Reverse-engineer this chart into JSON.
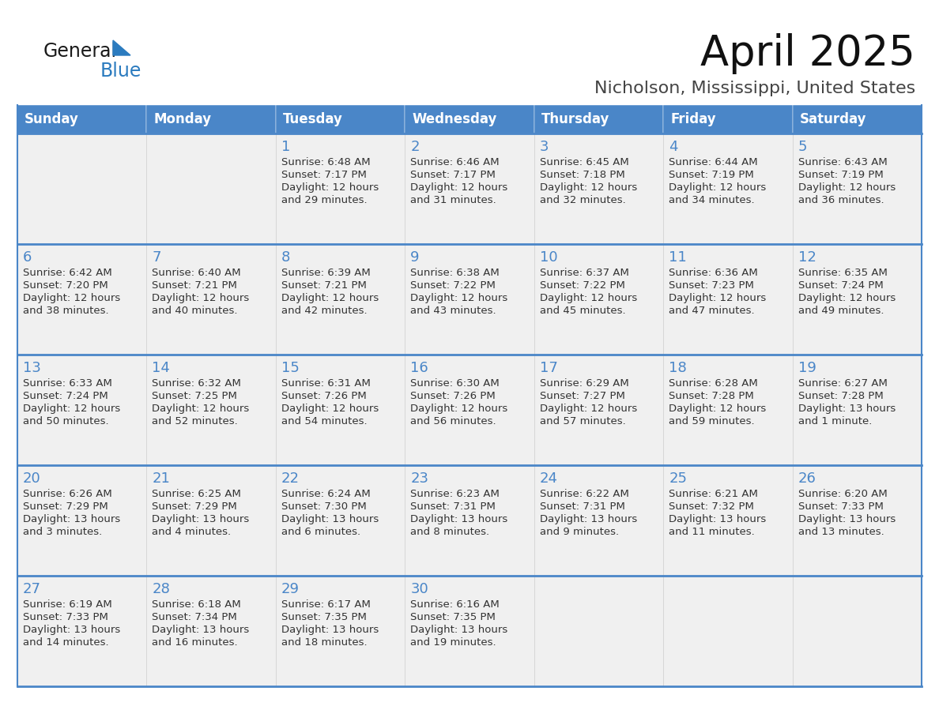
{
  "title": "April 2025",
  "subtitle": "Nicholson, Mississippi, United States",
  "header_color": "#4a86c8",
  "header_text_color": "#ffffff",
  "cell_bg_color": "#f0f0f0",
  "cell_border_color": "#4a86c8",
  "week_separator_color": "#4a86c8",
  "day_number_color": "#4a86c8",
  "cell_text_color": "#333333",
  "days_of_week": [
    "Sunday",
    "Monday",
    "Tuesday",
    "Wednesday",
    "Thursday",
    "Friday",
    "Saturday"
  ],
  "weeks": [
    [
      {
        "day": "",
        "info": ""
      },
      {
        "day": "",
        "info": ""
      },
      {
        "day": "1",
        "info": "Sunrise: 6:48 AM\nSunset: 7:17 PM\nDaylight: 12 hours\nand 29 minutes."
      },
      {
        "day": "2",
        "info": "Sunrise: 6:46 AM\nSunset: 7:17 PM\nDaylight: 12 hours\nand 31 minutes."
      },
      {
        "day": "3",
        "info": "Sunrise: 6:45 AM\nSunset: 7:18 PM\nDaylight: 12 hours\nand 32 minutes."
      },
      {
        "day": "4",
        "info": "Sunrise: 6:44 AM\nSunset: 7:19 PM\nDaylight: 12 hours\nand 34 minutes."
      },
      {
        "day": "5",
        "info": "Sunrise: 6:43 AM\nSunset: 7:19 PM\nDaylight: 12 hours\nand 36 minutes."
      }
    ],
    [
      {
        "day": "6",
        "info": "Sunrise: 6:42 AM\nSunset: 7:20 PM\nDaylight: 12 hours\nand 38 minutes."
      },
      {
        "day": "7",
        "info": "Sunrise: 6:40 AM\nSunset: 7:21 PM\nDaylight: 12 hours\nand 40 minutes."
      },
      {
        "day": "8",
        "info": "Sunrise: 6:39 AM\nSunset: 7:21 PM\nDaylight: 12 hours\nand 42 minutes."
      },
      {
        "day": "9",
        "info": "Sunrise: 6:38 AM\nSunset: 7:22 PM\nDaylight: 12 hours\nand 43 minutes."
      },
      {
        "day": "10",
        "info": "Sunrise: 6:37 AM\nSunset: 7:22 PM\nDaylight: 12 hours\nand 45 minutes."
      },
      {
        "day": "11",
        "info": "Sunrise: 6:36 AM\nSunset: 7:23 PM\nDaylight: 12 hours\nand 47 minutes."
      },
      {
        "day": "12",
        "info": "Sunrise: 6:35 AM\nSunset: 7:24 PM\nDaylight: 12 hours\nand 49 minutes."
      }
    ],
    [
      {
        "day": "13",
        "info": "Sunrise: 6:33 AM\nSunset: 7:24 PM\nDaylight: 12 hours\nand 50 minutes."
      },
      {
        "day": "14",
        "info": "Sunrise: 6:32 AM\nSunset: 7:25 PM\nDaylight: 12 hours\nand 52 minutes."
      },
      {
        "day": "15",
        "info": "Sunrise: 6:31 AM\nSunset: 7:26 PM\nDaylight: 12 hours\nand 54 minutes."
      },
      {
        "day": "16",
        "info": "Sunrise: 6:30 AM\nSunset: 7:26 PM\nDaylight: 12 hours\nand 56 minutes."
      },
      {
        "day": "17",
        "info": "Sunrise: 6:29 AM\nSunset: 7:27 PM\nDaylight: 12 hours\nand 57 minutes."
      },
      {
        "day": "18",
        "info": "Sunrise: 6:28 AM\nSunset: 7:28 PM\nDaylight: 12 hours\nand 59 minutes."
      },
      {
        "day": "19",
        "info": "Sunrise: 6:27 AM\nSunset: 7:28 PM\nDaylight: 13 hours\nand 1 minute."
      }
    ],
    [
      {
        "day": "20",
        "info": "Sunrise: 6:26 AM\nSunset: 7:29 PM\nDaylight: 13 hours\nand 3 minutes."
      },
      {
        "day": "21",
        "info": "Sunrise: 6:25 AM\nSunset: 7:29 PM\nDaylight: 13 hours\nand 4 minutes."
      },
      {
        "day": "22",
        "info": "Sunrise: 6:24 AM\nSunset: 7:30 PM\nDaylight: 13 hours\nand 6 minutes."
      },
      {
        "day": "23",
        "info": "Sunrise: 6:23 AM\nSunset: 7:31 PM\nDaylight: 13 hours\nand 8 minutes."
      },
      {
        "day": "24",
        "info": "Sunrise: 6:22 AM\nSunset: 7:31 PM\nDaylight: 13 hours\nand 9 minutes."
      },
      {
        "day": "25",
        "info": "Sunrise: 6:21 AM\nSunset: 7:32 PM\nDaylight: 13 hours\nand 11 minutes."
      },
      {
        "day": "26",
        "info": "Sunrise: 6:20 AM\nSunset: 7:33 PM\nDaylight: 13 hours\nand 13 minutes."
      }
    ],
    [
      {
        "day": "27",
        "info": "Sunrise: 6:19 AM\nSunset: 7:33 PM\nDaylight: 13 hours\nand 14 minutes."
      },
      {
        "day": "28",
        "info": "Sunrise: 6:18 AM\nSunset: 7:34 PM\nDaylight: 13 hours\nand 16 minutes."
      },
      {
        "day": "29",
        "info": "Sunrise: 6:17 AM\nSunset: 7:35 PM\nDaylight: 13 hours\nand 18 minutes."
      },
      {
        "day": "30",
        "info": "Sunrise: 6:16 AM\nSunset: 7:35 PM\nDaylight: 13 hours\nand 19 minutes."
      },
      {
        "day": "",
        "info": ""
      },
      {
        "day": "",
        "info": ""
      },
      {
        "day": "",
        "info": ""
      }
    ]
  ],
  "logo_text_general": "General",
  "logo_text_blue": "Blue",
  "logo_color_general": "#1a1a1a",
  "logo_color_blue": "#2b7bbf",
  "logo_triangle_color": "#2b7bbf",
  "title_fontsize": 38,
  "subtitle_fontsize": 16,
  "header_fontsize": 12,
  "day_num_fontsize": 13,
  "cell_text_fontsize": 9.5
}
